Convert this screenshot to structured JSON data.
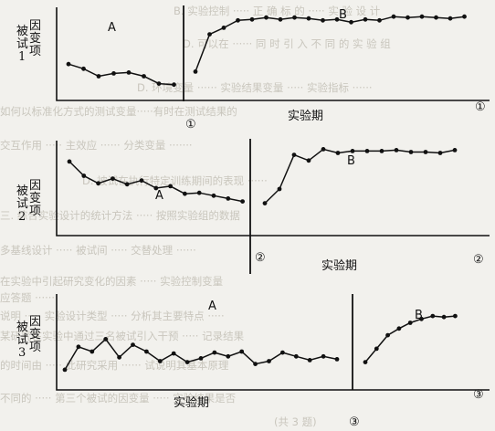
{
  "chart_data": [
    {
      "type": "line",
      "panel_number": "①",
      "number_marks": [
        "①",
        "①"
      ],
      "ylabel_cols": [
        "被试",
        "因变项"
      ],
      "ylabel_suffix": "1",
      "xlabel": "实验期",
      "phases": [
        "A",
        "B"
      ],
      "phase_a": [
        39,
        34,
        26,
        29,
        30,
        26,
        18,
        17
      ],
      "phase_b": [
        31,
        71,
        78,
        86,
        87,
        89,
        87,
        89,
        88,
        86,
        87,
        84,
        87,
        86,
        90,
        89,
        90,
        89,
        88,
        90
      ],
      "ylim": [
        0,
        100
      ]
    },
    {
      "type": "line",
      "panel_number": "②",
      "number_marks": [
        "②",
        "②"
      ],
      "ylabel_cols": [
        "被试",
        "因变项"
      ],
      "ylabel_suffix": "2",
      "xlabel": "实验期",
      "phases": [
        "A",
        "B"
      ],
      "phase_a": [
        78,
        63,
        55,
        60,
        54,
        58,
        50,
        52,
        44,
        45,
        42,
        39,
        36
      ],
      "phase_b": [
        34,
        49,
        85,
        79,
        91,
        87,
        89,
        89,
        89,
        90,
        88,
        88,
        87,
        90
      ],
      "ylim": [
        0,
        100
      ]
    },
    {
      "type": "line",
      "panel_number": "③",
      "number_marks": [
        "③",
        "③"
      ],
      "ylabel_cols": [
        "被试",
        "因变项"
      ],
      "ylabel_suffix": "3",
      "xlabel": "实验期",
      "phases": [
        "A",
        "B"
      ],
      "phase_a": [
        21,
        45,
        40,
        53,
        34,
        47,
        40,
        30,
        38,
        29,
        33,
        39,
        35,
        40,
        27,
        30,
        39,
        35,
        31,
        35,
        32
      ],
      "phase_b": [
        29,
        43,
        57,
        64,
        70,
        74,
        77,
        76,
        77
      ],
      "ylim": [
        0,
        100
      ]
    }
  ]
}
